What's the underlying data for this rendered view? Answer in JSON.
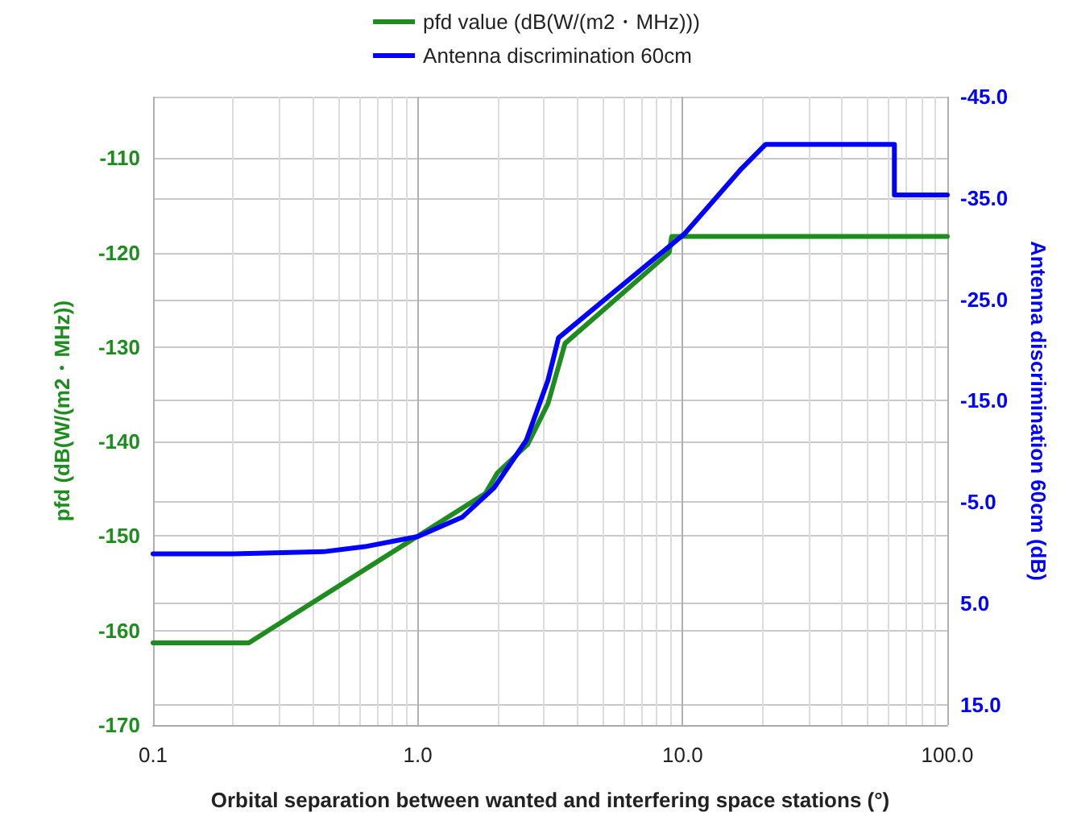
{
  "chart_data": {
    "type": "line",
    "xlabel": "Orbital separation between wanted and interfering space stations (°)",
    "ylabel": "pfd (dB(W/(m2・MHz))",
    "y2label": "Antenna discrimination 60cm (dB)",
    "log": "x",
    "xlim": [
      0.1,
      100
    ],
    "xticks": [
      0.1,
      {
        "value": 1,
        "label": "1.0"
      },
      {
        "value": 10,
        "label": "10.0"
      },
      {
        "value": 100,
        "label": "100.0"
      }
    ],
    "ylim": [
      -170,
      -103.5
    ],
    "yticks": [
      -170,
      -160,
      -150,
      -140,
      -130,
      -120,
      -110
    ],
    "y2lim": [
      17,
      -45
    ],
    "y2ticks": [
      {
        "value": 15,
        "label": "15.0"
      },
      {
        "value": 5,
        "label": "5.0"
      },
      {
        "value": -5,
        "label": "-5.0"
      },
      {
        "value": -15,
        "label": "-15.0"
      },
      {
        "value": -25,
        "label": "-25.0"
      },
      {
        "value": -35,
        "label": "-35.0"
      },
      {
        "value": -45,
        "label": "-45.0"
      }
    ],
    "grid": true,
    "legend": "top",
    "marker": "none",
    "line_style": "solid",
    "series": [
      {
        "name": "pfd value (dB(W/(m2・MHz)))",
        "color": "#1e8c1e",
        "x": [
          0.1,
          0.23,
          1,
          1.8,
          2,
          2.6,
          3.1,
          3.6,
          8.9,
          9.1,
          100
        ],
        "values": [
          -161.3,
          -161.3,
          -150,
          -145.5,
          -143.3,
          -140.3,
          -136,
          -129.6,
          -120,
          -118.3,
          -118.3
        ]
      },
      {
        "name": "Antenna discrimination 60cm",
        "color": "#0000ff",
        "axis": "y2",
        "x": [
          0.1,
          0.2,
          0.44,
          0.63,
          1,
          1.47,
          1.94,
          2.57,
          3.1,
          3.4,
          3.7,
          10.2,
          16.7,
          20.6,
          63.1,
          63.1,
          100
        ],
        "values": [
          0.1,
          0.1,
          -0.1,
          -0.6,
          -1.6,
          -3.5,
          -6.4,
          -11.1,
          -17,
          -21.2,
          -22,
          -31.5,
          -37.9,
          -40.3,
          -40.3,
          -35.3,
          -35.3
        ]
      }
    ]
  }
}
